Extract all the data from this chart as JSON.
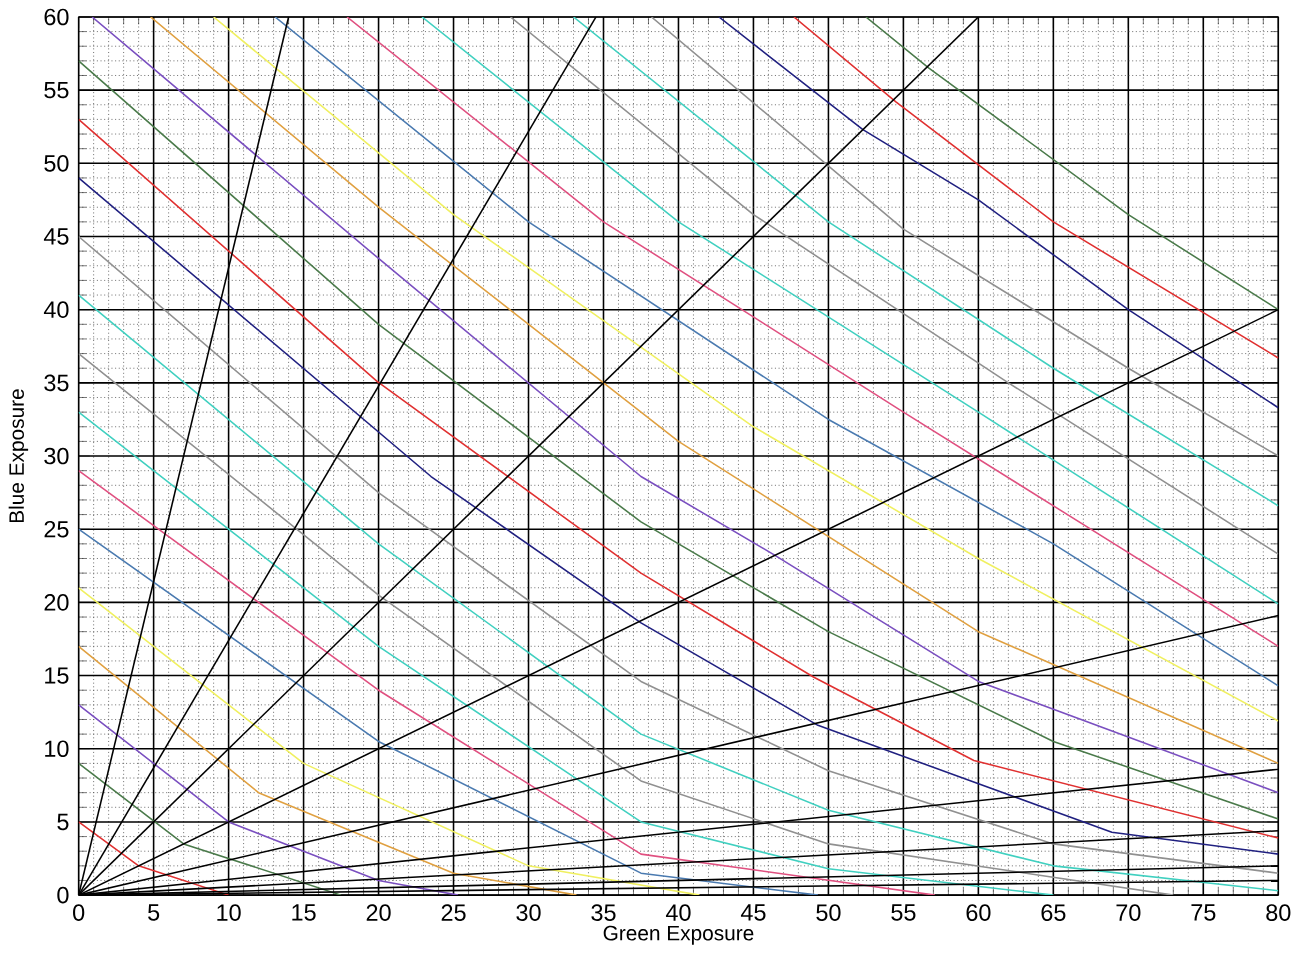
{
  "chart_data": {
    "type": "line",
    "xlabel": "Green Exposure",
    "ylabel": "Blue Exposure",
    "xlim": [
      0,
      80
    ],
    "ylim": [
      0,
      60
    ],
    "xticks": [
      0,
      5,
      10,
      15,
      20,
      25,
      30,
      35,
      40,
      45,
      50,
      55,
      60,
      65,
      70,
      75,
      80
    ],
    "yticks": [
      0,
      5,
      10,
      15,
      20,
      25,
      30,
      35,
      40,
      45,
      50,
      55,
      60
    ],
    "grid": true,
    "series": [
      {
        "color": "#e03030",
        "x": [
          0,
          4,
          10
        ],
        "values": [
          5,
          2,
          0
        ]
      },
      {
        "color": "#4a7a4a",
        "x": [
          0,
          7,
          17.5
        ],
        "values": [
          9,
          3.5,
          0
        ]
      },
      {
        "color": "#7a4fc0",
        "x": [
          0,
          10,
          20,
          25.3
        ],
        "values": [
          13,
          5,
          1,
          0
        ]
      },
      {
        "color": "#e0a040",
        "x": [
          0,
          12,
          25,
          33.2
        ],
        "values": [
          17,
          7,
          1.5,
          0
        ]
      },
      {
        "color": "#f0f060",
        "x": [
          0,
          15,
          30,
          41.4
        ],
        "values": [
          21,
          9,
          2,
          0
        ]
      },
      {
        "color": "#4a7ab0",
        "x": [
          0,
          20,
          37.5,
          49.3
        ],
        "values": [
          25,
          10.5,
          1.5,
          0
        ]
      },
      {
        "color": "#e05080",
        "x": [
          0,
          20,
          37.5,
          57.1
        ],
        "values": [
          29,
          14,
          2.8,
          0
        ]
      },
      {
        "color": "#40d0c0",
        "x": [
          0,
          20,
          37.5,
          50,
          65
        ],
        "values": [
          33,
          17,
          5,
          1.8,
          0
        ]
      },
      {
        "color": "#909090",
        "x": [
          0,
          20,
          37.5,
          50,
          73
        ],
        "values": [
          37,
          20.5,
          7.8,
          3.5,
          0
        ]
      },
      {
        "color": "#40d0c0",
        "x": [
          0,
          20,
          37.5,
          50,
          65,
          80
        ],
        "values": [
          41,
          24,
          11,
          5.8,
          2,
          0.3
        ]
      },
      {
        "color": "#909090",
        "x": [
          0,
          20,
          37.5,
          50,
          65,
          80
        ],
        "values": [
          45,
          27.5,
          14.6,
          8.5,
          3.5,
          1.5
        ]
      },
      {
        "color": "#202080",
        "x": [
          0,
          23.5,
          37.5,
          49.3,
          68.9,
          80
        ],
        "values": [
          49,
          28.6,
          18.6,
          11.6,
          4.3,
          2.8
        ]
      },
      {
        "color": "#e03030",
        "x": [
          0,
          19.9,
          37.5,
          49,
          59.7,
          80
        ],
        "values": [
          53,
          35.1,
          22,
          14.9,
          9.2,
          3.9
        ]
      },
      {
        "color": "#4a7a4a",
        "x": [
          0,
          20,
          37.5,
          50,
          65,
          80
        ],
        "values": [
          57,
          39,
          25.5,
          18,
          10.5,
          5.2
        ]
      },
      {
        "color": "#7a4fc0",
        "x": [
          0.9,
          20,
          37.5,
          46.3,
          60,
          80
        ],
        "values": [
          60,
          43.5,
          28.6,
          23.3,
          14.6,
          7
        ]
      },
      {
        "color": "#e0a040",
        "x": [
          4.8,
          20,
          40,
          60,
          80
        ],
        "values": [
          60,
          47,
          31,
          18,
          9
        ]
      },
      {
        "color": "#f0f060",
        "x": [
          9,
          25,
          45,
          60,
          80
        ],
        "values": [
          60,
          46.5,
          32,
          23,
          11.9
        ]
      },
      {
        "color": "#4a7ab0",
        "x": [
          13.1,
          30,
          50,
          65,
          80
        ],
        "values": [
          60,
          46,
          32.5,
          24,
          14.3
        ]
      },
      {
        "color": "#e05080",
        "x": [
          17.9,
          35,
          55,
          80
        ],
        "values": [
          60,
          46,
          33,
          17
        ]
      },
      {
        "color": "#40d0c0",
        "x": [
          22.9,
          40,
          60,
          80
        ],
        "values": [
          60,
          46,
          33,
          19.9
        ]
      },
      {
        "color": "#909090",
        "x": [
          28.8,
          45,
          62,
          80
        ],
        "values": [
          60,
          46.5,
          35,
          23.3
        ]
      },
      {
        "color": "#40d0c0",
        "x": [
          33,
          50,
          65,
          80
        ],
        "values": [
          60,
          46,
          36,
          26.6
        ]
      },
      {
        "color": "#909090",
        "x": [
          38.2,
          55,
          70,
          80
        ],
        "values": [
          60,
          45.5,
          36,
          30
        ]
      },
      {
        "color": "#202080",
        "x": [
          42.7,
          52.3,
          60,
          70,
          80
        ],
        "values": [
          60,
          52.3,
          47.5,
          40,
          33.3
        ]
      },
      {
        "color": "#e03030",
        "x": [
          47.7,
          54.5,
          65,
          80
        ],
        "values": [
          60,
          54.2,
          46,
          36.7
        ]
      },
      {
        "color": "#4a7a4a",
        "x": [
          52.5,
          56.7,
          70,
          80
        ],
        "values": [
          60,
          56.5,
          46.5,
          40
        ]
      },
      {
        "color": "#000000",
        "x": [
          0,
          14
        ],
        "values": [
          0,
          60
        ]
      },
      {
        "color": "#000000",
        "x": [
          0,
          34.5
        ],
        "values": [
          0,
          60
        ]
      },
      {
        "color": "#000000",
        "x": [
          0,
          60
        ],
        "values": [
          0,
          60
        ]
      },
      {
        "color": "#000000",
        "x": [
          0,
          80
        ],
        "values": [
          0,
          40
        ]
      },
      {
        "color": "#000000",
        "x": [
          0,
          80
        ],
        "values": [
          0,
          19.1
        ]
      },
      {
        "color": "#000000",
        "x": [
          0,
          80
        ],
        "values": [
          0,
          8.6
        ]
      },
      {
        "color": "#000000",
        "x": [
          0,
          80
        ],
        "values": [
          0,
          4.4
        ]
      },
      {
        "color": "#000000",
        "x": [
          0,
          80
        ],
        "values": [
          0,
          2
        ]
      },
      {
        "color": "#000000",
        "x": [
          0,
          80
        ],
        "values": [
          0,
          1
        ]
      }
    ]
  }
}
